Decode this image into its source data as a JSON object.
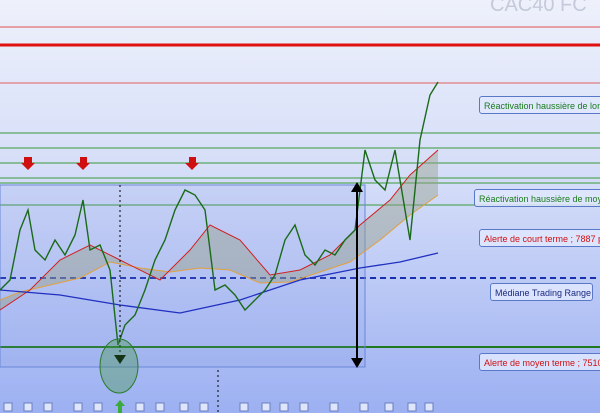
{
  "header": {
    "title": "CAC40 FC"
  },
  "labels": [
    "Réactivation haussière de long",
    "Réactivation haussière de moye",
    "Alerte de court terme ; 7887 p",
    "Médiane Trading Range",
    "Alerte de moyen terme ; 7510"
  ]
}
